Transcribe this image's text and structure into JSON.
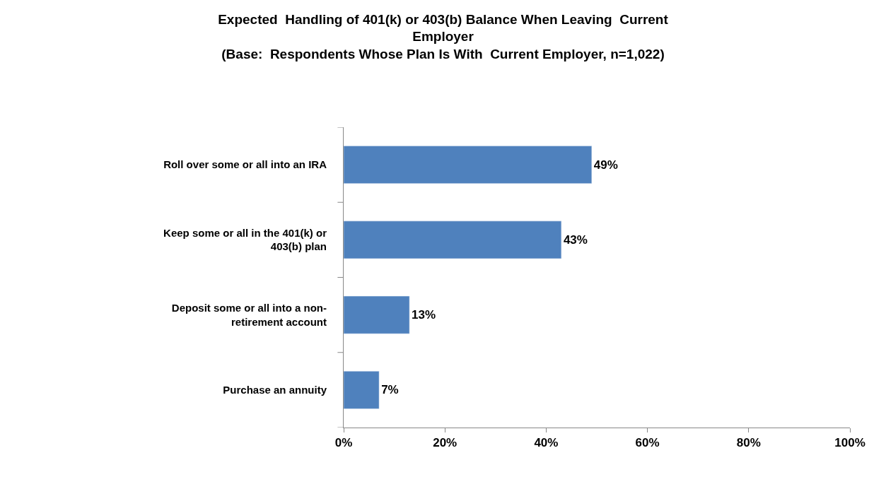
{
  "chart_data": {
    "type": "bar",
    "orientation": "horizontal",
    "title": "Expected  Handling of 401(k) or 403(b) Balance When Leaving  Current Employer",
    "subtitle": "(Base:  Respondents Whose Plan Is With  Current Employer, n=1,022)",
    "categories": [
      "Roll over some or all into an IRA",
      "Keep some or all in the 401(k) or 403(b) plan",
      "Deposit some or all into a non-retirement account",
      "Purchase an annuity"
    ],
    "values": [
      49,
      43,
      13,
      7
    ],
    "value_labels": [
      "49%",
      "43%",
      "13%",
      "7%"
    ],
    "color": "#4f81bd",
    "xlim": [
      0,
      100
    ],
    "xticks": [
      {
        "value": 0,
        "label": "0%"
      },
      {
        "value": 20,
        "label": "20%"
      },
      {
        "value": 40,
        "label": "40%"
      },
      {
        "value": 60,
        "label": "60%"
      },
      {
        "value": 80,
        "label": "80%"
      },
      {
        "value": 100,
        "label": "100%"
      }
    ],
    "legend": false
  }
}
